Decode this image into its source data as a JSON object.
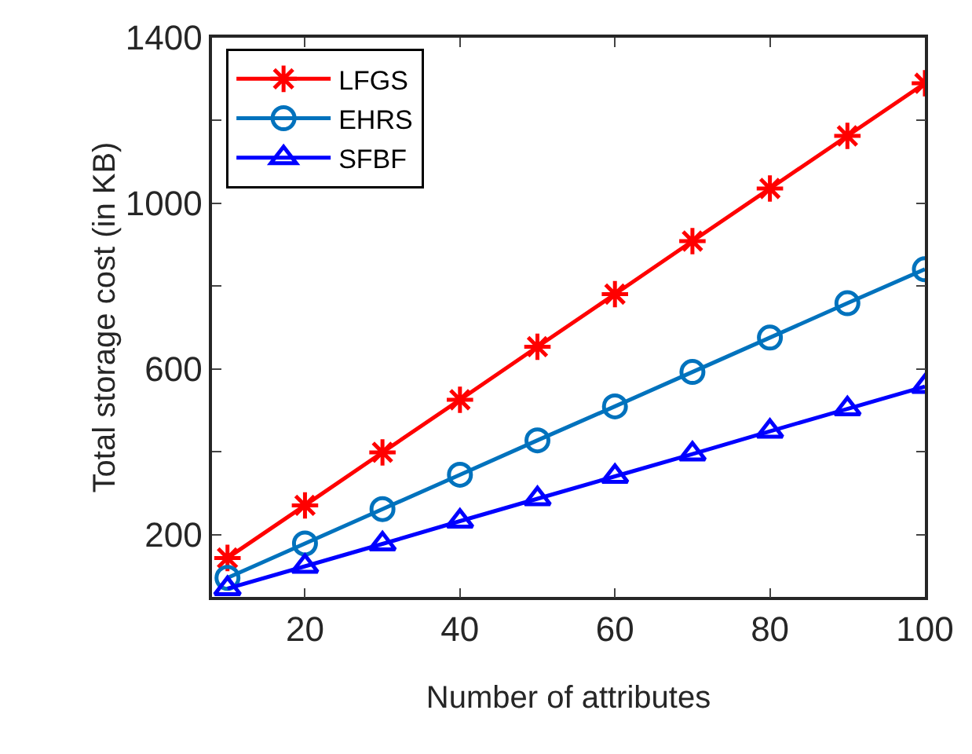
{
  "chart_data": {
    "type": "line",
    "xlabel": "Number of attributes",
    "ylabel": "Total storage cost (in KB)",
    "x": [
      10,
      20,
      30,
      40,
      50,
      60,
      70,
      80,
      90,
      100
    ],
    "series": [
      {
        "name": "LFGS",
        "color": "#ff0000",
        "marker": "cross",
        "values": [
          144,
          271,
          399,
          526,
          654,
          781,
          909,
          1036,
          1163,
          1290
        ]
      },
      {
        "name": "EHRS",
        "color": "#0072bd",
        "marker": "circle",
        "values": [
          96,
          179,
          262,
          345,
          428,
          510,
          593,
          676,
          759,
          841
        ]
      },
      {
        "name": "SFBF",
        "color": "#0000ff",
        "marker": "triangle",
        "values": [
          70,
          124,
          178,
          233,
          287,
          341,
          395,
          450,
          504,
          558
        ]
      }
    ],
    "xlim": [
      8,
      100
    ],
    "xticks": [
      20,
      40,
      60,
      80,
      100
    ],
    "ylim": [
      50,
      1400
    ],
    "yticks": [
      200,
      {
        "value": 400,
        "label": null
      },
      600,
      {
        "value": 800,
        "label": null
      },
      1000,
      {
        "value": 1200,
        "label": null
      },
      1400
    ],
    "grid": false,
    "legend": "top left",
    "line_style": "solid"
  }
}
